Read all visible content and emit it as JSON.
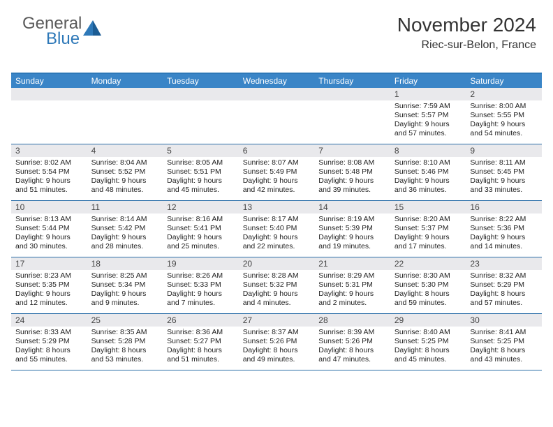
{
  "logo": {
    "word1": "General",
    "word2": "Blue"
  },
  "title": "November 2024",
  "location": "Riec-sur-Belon, France",
  "colors": {
    "header_bg": "#3a85c7",
    "header_border": "#2d78b8",
    "row_border": "#2a6ea8",
    "daynum_bg": "#e9e9ec",
    "text": "#222222",
    "logo_gray": "#5a5a5a",
    "logo_blue": "#2d78b8"
  },
  "typography": {
    "title_fontsize": 28,
    "location_fontsize": 16,
    "dayheader_fontsize": 12,
    "daynum_fontsize": 12,
    "detail_fontsize": 10.5
  },
  "day_names": [
    "Sunday",
    "Monday",
    "Tuesday",
    "Wednesday",
    "Thursday",
    "Friday",
    "Saturday"
  ],
  "weeks": [
    [
      {
        "empty": true
      },
      {
        "empty": true
      },
      {
        "empty": true
      },
      {
        "empty": true
      },
      {
        "empty": true
      },
      {
        "n": "1",
        "sunrise": "Sunrise: 7:59 AM",
        "sunset": "Sunset: 5:57 PM",
        "daylight": "Daylight: 9 hours and 57 minutes."
      },
      {
        "n": "2",
        "sunrise": "Sunrise: 8:00 AM",
        "sunset": "Sunset: 5:55 PM",
        "daylight": "Daylight: 9 hours and 54 minutes."
      }
    ],
    [
      {
        "n": "3",
        "sunrise": "Sunrise: 8:02 AM",
        "sunset": "Sunset: 5:54 PM",
        "daylight": "Daylight: 9 hours and 51 minutes."
      },
      {
        "n": "4",
        "sunrise": "Sunrise: 8:04 AM",
        "sunset": "Sunset: 5:52 PM",
        "daylight": "Daylight: 9 hours and 48 minutes."
      },
      {
        "n": "5",
        "sunrise": "Sunrise: 8:05 AM",
        "sunset": "Sunset: 5:51 PM",
        "daylight": "Daylight: 9 hours and 45 minutes."
      },
      {
        "n": "6",
        "sunrise": "Sunrise: 8:07 AM",
        "sunset": "Sunset: 5:49 PM",
        "daylight": "Daylight: 9 hours and 42 minutes."
      },
      {
        "n": "7",
        "sunrise": "Sunrise: 8:08 AM",
        "sunset": "Sunset: 5:48 PM",
        "daylight": "Daylight: 9 hours and 39 minutes."
      },
      {
        "n": "8",
        "sunrise": "Sunrise: 8:10 AM",
        "sunset": "Sunset: 5:46 PM",
        "daylight": "Daylight: 9 hours and 36 minutes."
      },
      {
        "n": "9",
        "sunrise": "Sunrise: 8:11 AM",
        "sunset": "Sunset: 5:45 PM",
        "daylight": "Daylight: 9 hours and 33 minutes."
      }
    ],
    [
      {
        "n": "10",
        "sunrise": "Sunrise: 8:13 AM",
        "sunset": "Sunset: 5:44 PM",
        "daylight": "Daylight: 9 hours and 30 minutes."
      },
      {
        "n": "11",
        "sunrise": "Sunrise: 8:14 AM",
        "sunset": "Sunset: 5:42 PM",
        "daylight": "Daylight: 9 hours and 28 minutes."
      },
      {
        "n": "12",
        "sunrise": "Sunrise: 8:16 AM",
        "sunset": "Sunset: 5:41 PM",
        "daylight": "Daylight: 9 hours and 25 minutes."
      },
      {
        "n": "13",
        "sunrise": "Sunrise: 8:17 AM",
        "sunset": "Sunset: 5:40 PM",
        "daylight": "Daylight: 9 hours and 22 minutes."
      },
      {
        "n": "14",
        "sunrise": "Sunrise: 8:19 AM",
        "sunset": "Sunset: 5:39 PM",
        "daylight": "Daylight: 9 hours and 19 minutes."
      },
      {
        "n": "15",
        "sunrise": "Sunrise: 8:20 AM",
        "sunset": "Sunset: 5:37 PM",
        "daylight": "Daylight: 9 hours and 17 minutes."
      },
      {
        "n": "16",
        "sunrise": "Sunrise: 8:22 AM",
        "sunset": "Sunset: 5:36 PM",
        "daylight": "Daylight: 9 hours and 14 minutes."
      }
    ],
    [
      {
        "n": "17",
        "sunrise": "Sunrise: 8:23 AM",
        "sunset": "Sunset: 5:35 PM",
        "daylight": "Daylight: 9 hours and 12 minutes."
      },
      {
        "n": "18",
        "sunrise": "Sunrise: 8:25 AM",
        "sunset": "Sunset: 5:34 PM",
        "daylight": "Daylight: 9 hours and 9 minutes."
      },
      {
        "n": "19",
        "sunrise": "Sunrise: 8:26 AM",
        "sunset": "Sunset: 5:33 PM",
        "daylight": "Daylight: 9 hours and 7 minutes."
      },
      {
        "n": "20",
        "sunrise": "Sunrise: 8:28 AM",
        "sunset": "Sunset: 5:32 PM",
        "daylight": "Daylight: 9 hours and 4 minutes."
      },
      {
        "n": "21",
        "sunrise": "Sunrise: 8:29 AM",
        "sunset": "Sunset: 5:31 PM",
        "daylight": "Daylight: 9 hours and 2 minutes."
      },
      {
        "n": "22",
        "sunrise": "Sunrise: 8:30 AM",
        "sunset": "Sunset: 5:30 PM",
        "daylight": "Daylight: 8 hours and 59 minutes."
      },
      {
        "n": "23",
        "sunrise": "Sunrise: 8:32 AM",
        "sunset": "Sunset: 5:29 PM",
        "daylight": "Daylight: 8 hours and 57 minutes."
      }
    ],
    [
      {
        "n": "24",
        "sunrise": "Sunrise: 8:33 AM",
        "sunset": "Sunset: 5:29 PM",
        "daylight": "Daylight: 8 hours and 55 minutes."
      },
      {
        "n": "25",
        "sunrise": "Sunrise: 8:35 AM",
        "sunset": "Sunset: 5:28 PM",
        "daylight": "Daylight: 8 hours and 53 minutes."
      },
      {
        "n": "26",
        "sunrise": "Sunrise: 8:36 AM",
        "sunset": "Sunset: 5:27 PM",
        "daylight": "Daylight: 8 hours and 51 minutes."
      },
      {
        "n": "27",
        "sunrise": "Sunrise: 8:37 AM",
        "sunset": "Sunset: 5:26 PM",
        "daylight": "Daylight: 8 hours and 49 minutes."
      },
      {
        "n": "28",
        "sunrise": "Sunrise: 8:39 AM",
        "sunset": "Sunset: 5:26 PM",
        "daylight": "Daylight: 8 hours and 47 minutes."
      },
      {
        "n": "29",
        "sunrise": "Sunrise: 8:40 AM",
        "sunset": "Sunset: 5:25 PM",
        "daylight": "Daylight: 8 hours and 45 minutes."
      },
      {
        "n": "30",
        "sunrise": "Sunrise: 8:41 AM",
        "sunset": "Sunset: 5:25 PM",
        "daylight": "Daylight: 8 hours and 43 minutes."
      }
    ]
  ]
}
